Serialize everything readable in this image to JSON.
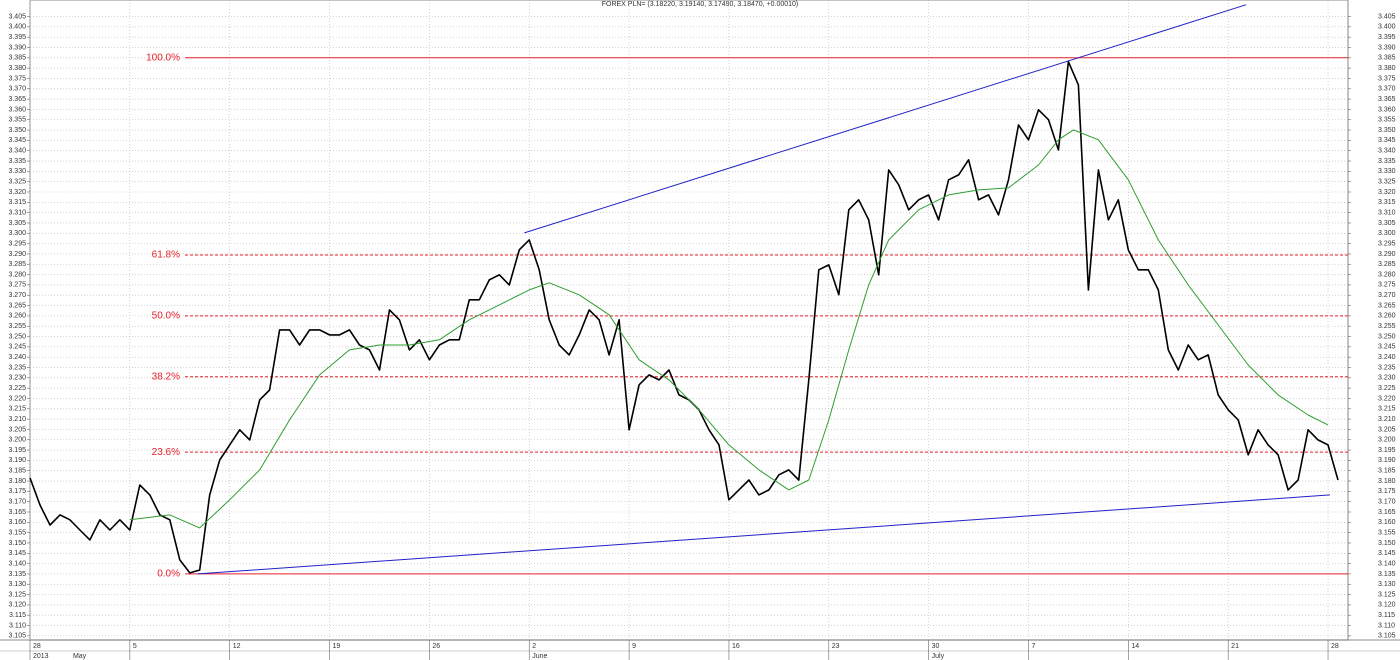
{
  "chart_data": {
    "type": "line",
    "title": "FOREX PLN= (3.18220, 3.19140, 3.17490, 3.18470, +0.00010)",
    "xlim": [
      0,
      66
    ],
    "ylim": [
      3.103,
      3.413
    ],
    "grid": true,
    "xticks": [
      {
        "value": 0,
        "label": "28"
      },
      {
        "value": 5,
        "label": "5"
      },
      {
        "value": 10,
        "label": "12"
      },
      {
        "value": 15,
        "label": "19"
      },
      {
        "value": 20,
        "label": "26"
      },
      {
        "value": 25,
        "label": "2"
      },
      {
        "value": 30,
        "label": "9"
      },
      {
        "value": 35,
        "label": "16"
      },
      {
        "value": 40,
        "label": "23"
      },
      {
        "value": 45,
        "label": "30"
      },
      {
        "value": 50,
        "label": "7"
      },
      {
        "value": 55,
        "label": "14"
      },
      {
        "value": 60,
        "label": "21"
      },
      {
        "value": 65,
        "label": "28"
      }
    ],
    "month_labels": [
      {
        "value": 0,
        "label": "2013"
      },
      {
        "value": 2,
        "label": "May"
      },
      {
        "value": 25,
        "label": "June"
      },
      {
        "value": 45,
        "label": "July"
      }
    ],
    "yticks": [
      3.105,
      {
        "value": 3.11,
        "label": "3.110"
      },
      3.115,
      {
        "value": 3.12,
        "label": "3.120"
      },
      3.125,
      {
        "value": 3.13,
        "label": "3.130"
      },
      3.135,
      {
        "value": 3.14,
        "label": "3.140"
      },
      3.145,
      {
        "value": 3.15,
        "label": "3.150"
      },
      3.155,
      {
        "value": 3.16,
        "label": "3.160"
      },
      3.165,
      {
        "value": 3.17,
        "label": "3.170"
      },
      3.175,
      {
        "value": 3.18,
        "label": "3.180"
      },
      3.185,
      {
        "value": 3.19,
        "label": "3.190"
      },
      3.195,
      {
        "value": 3.2,
        "label": "3.200"
      },
      3.205,
      {
        "value": 3.21,
        "label": "3.210"
      },
      3.215,
      {
        "value": 3.22,
        "label": "3.220"
      },
      3.225,
      {
        "value": 3.23,
        "label": "3.230"
      },
      3.235,
      {
        "value": 3.24,
        "label": "3.240"
      },
      3.245,
      {
        "value": 3.25,
        "label": "3.250"
      },
      3.255,
      {
        "value": 3.26,
        "label": "3.260"
      },
      3.265,
      {
        "value": 3.27,
        "label": "3.270"
      },
      3.275,
      {
        "value": 3.28,
        "label": "3.280"
      },
      3.285,
      {
        "value": 3.29,
        "label": "3.290"
      },
      3.295,
      {
        "value": 3.3,
        "label": "3.300"
      },
      3.305,
      {
        "value": 3.31,
        "label": "3.310"
      },
      3.315,
      {
        "value": 3.32,
        "label": "3.320"
      },
      3.325,
      {
        "value": 3.33,
        "label": "3.330"
      },
      3.335,
      {
        "value": 3.34,
        "label": "3.340"
      },
      3.345,
      {
        "value": 3.35,
        "label": "3.350"
      },
      3.355,
      {
        "value": 3.36,
        "label": "3.360"
      },
      3.365,
      {
        "value": 3.37,
        "label": "3.370"
      },
      3.375,
      {
        "value": 3.38,
        "label": "3.380"
      },
      3.385,
      {
        "value": 3.39,
        "label": "3.390"
      },
      3.395,
      {
        "value": 3.4,
        "label": "3.400"
      },
      3.405
    ],
    "series": [
      {
        "color": "#000000",
        "width": 1.6,
        "x": [
          0,
          0.5,
          1,
          1.5,
          2,
          2.5,
          3,
          3.5,
          4,
          4.5,
          5,
          5.5,
          6,
          6.5,
          7,
          7.5,
          8,
          8.5,
          9,
          9.5,
          10,
          10.5,
          11,
          11.5,
          12,
          12.5,
          13,
          13.5,
          14,
          14.5,
          15,
          15.5,
          16,
          16.5,
          17,
          17.5,
          18,
          18.5,
          19,
          19.5,
          20,
          20.5,
          21,
          21.5,
          22,
          22.5,
          23,
          23.5,
          24,
          24.5,
          25,
          25.5,
          26,
          26.5,
          27,
          27.5,
          28,
          28.5,
          29,
          29.5,
          30,
          30.5,
          31,
          31.5,
          32,
          32.5,
          33,
          33.5,
          34,
          34.5,
          35,
          35.5,
          36,
          36.5,
          37,
          37.5,
          38,
          38.5,
          39,
          39.5,
          40,
          40.5,
          41,
          41.5,
          42,
          42.5,
          43,
          43.5,
          44,
          44.5,
          45,
          45.5,
          46,
          46.5,
          47,
          47.5,
          48,
          48.5,
          49,
          49.5,
          50,
          50.5,
          51,
          51.5,
          52,
          52.5,
          53,
          53.5,
          54,
          54.5,
          55,
          55.5,
          56,
          56.5,
          57,
          57.5,
          58,
          58.5,
          59,
          59.5,
          60,
          60.5,
          61,
          61.5,
          62,
          62.5,
          63,
          63.5,
          64,
          64.5,
          65,
          65.5
        ],
        "values": [
          3.1815,
          3.1684,
          3.1587,
          3.1636,
          3.1612,
          3.1563,
          3.1515,
          3.1612,
          3.1563,
          3.1612,
          3.1563,
          3.1781,
          3.1733,
          3.1636,
          3.1612,
          3.1418,
          3.1355,
          3.1369,
          3.1733,
          3.1902,
          3.1975,
          3.2048,
          3.1999,
          3.2193,
          3.2241,
          3.2532,
          3.2532,
          3.2459,
          3.2532,
          3.2532,
          3.2508,
          3.2508,
          3.2532,
          3.2459,
          3.2435,
          3.2338,
          3.2629,
          3.2581,
          3.2435,
          3.2484,
          3.2387,
          3.2459,
          3.2484,
          3.2484,
          3.2678,
          3.2678,
          3.2774,
          3.2799,
          3.275,
          3.292,
          3.2968,
          3.2823,
          3.2581,
          3.2459,
          3.2411,
          3.2508,
          3.2629,
          3.2581,
          3.2411,
          3.2581,
          3.2048,
          3.2266,
          3.2314,
          3.229,
          3.2338,
          3.2217,
          3.2193,
          3.2145,
          3.2048,
          3.1975,
          3.1709,
          3.1757,
          3.1805,
          3.1733,
          3.1757,
          3.183,
          3.1854,
          3.1805,
          3.229,
          3.2823,
          3.2847,
          3.2702,
          3.3114,
          3.3162,
          3.3065,
          3.2799,
          3.3307,
          3.3235,
          3.3114,
          3.3162,
          3.3186,
          3.3065,
          3.3259,
          3.3283,
          3.3356,
          3.3162,
          3.3186,
          3.3089,
          3.3259,
          3.3525,
          3.3453,
          3.3598,
          3.355,
          3.3404,
          3.3831,
          3.3719,
          3.2726,
          3.3307,
          3.3065,
          3.3162,
          3.292,
          3.2823,
          3.2823,
          3.2726,
          3.2435,
          3.2338,
          3.2459,
          3.2387,
          3.2411,
          3.2217,
          3.2145,
          3.2096,
          3.1927,
          3.2048,
          3.1975,
          3.1927,
          3.1757,
          3.1805,
          3.2048,
          3.1999,
          3.1975,
          3.1805
        ]
      },
      {
        "color": "#2e9e2e",
        "width": 1,
        "x": [
          5,
          7,
          8.5,
          10,
          11.5,
          13,
          14.5,
          16,
          17.5,
          19,
          20.5,
          22,
          23.5,
          25,
          26,
          27.5,
          29,
          30.5,
          32,
          33.5,
          35,
          36.5,
          38,
          39,
          40,
          41,
          42,
          43,
          44.5,
          46,
          47.5,
          49,
          50.5,
          51.5,
          52.25,
          53.5,
          55,
          56.5,
          58,
          59.5,
          61,
          62.5,
          64,
          65
        ],
        "values": [
          3.1612,
          3.1636,
          3.1573,
          3.1709,
          3.1854,
          3.2096,
          3.2314,
          3.2435,
          3.2459,
          3.2459,
          3.2484,
          3.2581,
          3.2653,
          3.2726,
          3.276,
          3.2702,
          3.2605,
          3.2387,
          3.229,
          3.2145,
          3.1975,
          3.1854,
          3.1757,
          3.1805,
          3.2096,
          3.2435,
          3.275,
          3.2968,
          3.3114,
          3.3186,
          3.321,
          3.322,
          3.3331,
          3.3453,
          3.3501,
          3.3453,
          3.3259,
          3.2968,
          3.275,
          3.2556,
          3.2362,
          3.2217,
          3.212,
          3.2072
        ]
      }
    ],
    "trendlines": [
      {
        "color": "#2020c8",
        "x": [
          24.75,
          60.9
        ],
        "y": [
          3.3002,
          3.4107
        ]
      },
      {
        "color": "#2020c8",
        "x": [
          8.4,
          65.1
        ],
        "y": [
          3.135,
          3.1733
        ]
      }
    ],
    "level_color": "#e8202a",
    "levels": [
      {
        "label": "100.0%",
        "value": 3.385,
        "style": "solid"
      },
      {
        "label": "61.8%",
        "value": 3.2895,
        "style": "dashed"
      },
      {
        "label": "50.0%",
        "value": 3.26,
        "style": "dashed"
      },
      {
        "label": "38.2%",
        "value": 3.2305,
        "style": "dashed"
      },
      {
        "label": "23.6%",
        "value": 3.194,
        "style": "dashed"
      },
      {
        "label": "0.0%",
        "value": 3.135,
        "style": "solid"
      }
    ]
  }
}
